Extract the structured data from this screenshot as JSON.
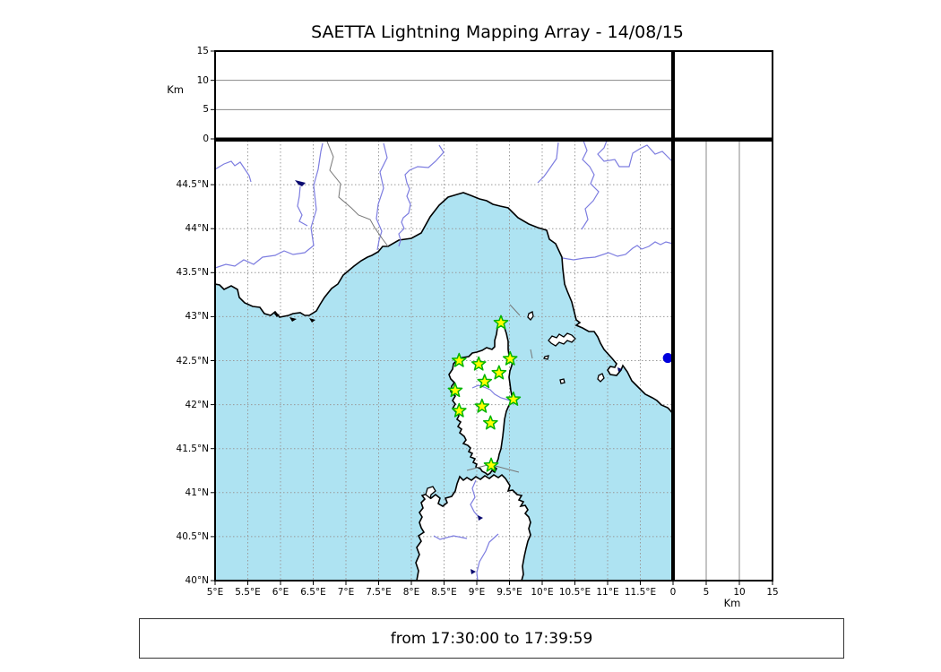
{
  "title": "SAETTA Lightning Mapping Array - 14/08/15",
  "time_range_text": "from 17:30:00 to 17:39:59",
  "axes": {
    "longitude": {
      "tick_labels": [
        "5°E",
        "5.5°E",
        "6°E",
        "6.5°E",
        "7°E",
        "7.5°E",
        "8°E",
        "8.5°E",
        "9°E",
        "9.5°E",
        "10°E",
        "10.5°E",
        "11°E",
        "11.5°E"
      ],
      "range_deg": [
        5,
        12
      ]
    },
    "latitude": {
      "tick_labels": [
        "40°N",
        "40.5°N",
        "41°N",
        "41.5°N",
        "42°N",
        "42.5°N",
        "43°N",
        "43.5°N",
        "44°N",
        "44.5°N"
      ],
      "range_deg": [
        40,
        45
      ]
    },
    "altitude_left": {
      "unit_label": "Km",
      "tick_labels": [
        "0",
        "5",
        "10",
        "15"
      ],
      "range_km": [
        0,
        15
      ],
      "gridlines_km": [
        5,
        10
      ]
    },
    "altitude_bottom": {
      "unit_label": "Km",
      "tick_labels": [
        "0",
        "5",
        "10",
        "15"
      ],
      "range_km": [
        0,
        15
      ],
      "gridlines_km": [
        5,
        10
      ]
    }
  },
  "stations": [
    {
      "lon": 9.37,
      "lat": 42.93
    },
    {
      "lon": 8.73,
      "lat": 42.5
    },
    {
      "lon": 9.03,
      "lat": 42.46
    },
    {
      "lon": 9.51,
      "lat": 42.52
    },
    {
      "lon": 9.34,
      "lat": 42.36
    },
    {
      "lon": 9.12,
      "lat": 42.26
    },
    {
      "lon": 8.67,
      "lat": 42.16
    },
    {
      "lon": 8.73,
      "lat": 41.93
    },
    {
      "lon": 9.08,
      "lat": 41.98
    },
    {
      "lon": 9.56,
      "lat": 42.06
    },
    {
      "lon": 9.21,
      "lat": 41.79
    },
    {
      "lon": 9.22,
      "lat": 41.31
    }
  ],
  "event_marker": {
    "lon": 11.92,
    "lat": 42.53
  },
  "colors": {
    "sea": "#aee3f2",
    "land": "#ffffff",
    "coastline": "#000000",
    "river": "#7d7de0",
    "gridline": "#999999",
    "panel_gridline": "#888888",
    "border_line": "#777777",
    "lake": "#0a0a70",
    "station_fill": "#ffff00",
    "station_stroke": "#00b400",
    "event_fill": "#0000dd"
  }
}
